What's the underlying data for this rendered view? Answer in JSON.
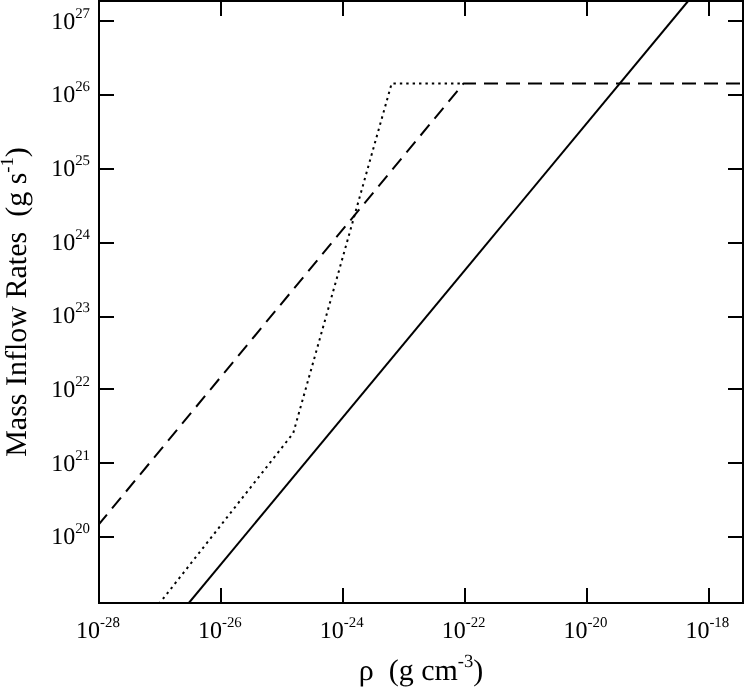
{
  "chart_data": {
    "type": "line",
    "xlabel": "ρ  (g cm$^{-3}$)",
    "ylabel": "Mass Inflow Rates  (g s$^{-1}$)",
    "log": "xy",
    "grid": false,
    "legend": false,
    "marker": "none",
    "xlim": [
      1e-28,
      4e-18
    ],
    "ylim": [
      1.2e+19,
      1.9e+27
    ],
    "xticks": [
      {
        "value": 1e-28,
        "label": "10$^{-28}$"
      },
      {
        "value": 1e-26,
        "label": "10$^{-26}$"
      },
      {
        "value": 1e-24,
        "label": "10$^{-24}$"
      },
      {
        "value": 1e-22,
        "label": "10$^{-22}$"
      },
      {
        "value": 1e-20,
        "label": "10$^{-20}$"
      },
      {
        "value": 1e-18,
        "label": "10$^{-18}$"
      }
    ],
    "yticks": [
      {
        "value": 1e+20,
        "label": "10$^{20}$"
      },
      {
        "value": 1e+21,
        "label": "10$^{21}$"
      },
      {
        "value": 1e+22,
        "label": "10$^{22}$"
      },
      {
        "value": 1e+23,
        "label": "10$^{23}$"
      },
      {
        "value": 1e+24,
        "label": "10$^{24}$"
      },
      {
        "value": 1e+25,
        "label": "10$^{25}$"
      },
      {
        "value": 1e+26,
        "label": "10$^{26}$"
      },
      {
        "value": 1e+27,
        "label": "10$^{27}$"
      }
    ],
    "series": [
      {
        "color": "#000000",
        "line_style": "solid",
        "x": [
          3e-27,
          5e-19
        ],
        "values": [
          1.2e+19,
          1.9e+27
        ]
      },
      {
        "color": "#000000",
        "line_style": "dashed",
        "x": [
          1e-28,
          1e-22,
          4e-18
        ],
        "values": [
          1.4e+20,
          1.4e+26,
          1.4e+26
        ]
      },
      {
        "color": "#000000",
        "line_style": "dotted",
        "x": [
          1e-27,
          1.6e-25,
          6.6e-24,
          1e-22
        ],
        "values": [
          1.2e+19,
          2.5e+21,
          1.4e+26,
          1.4e+26
        ]
      }
    ]
  }
}
